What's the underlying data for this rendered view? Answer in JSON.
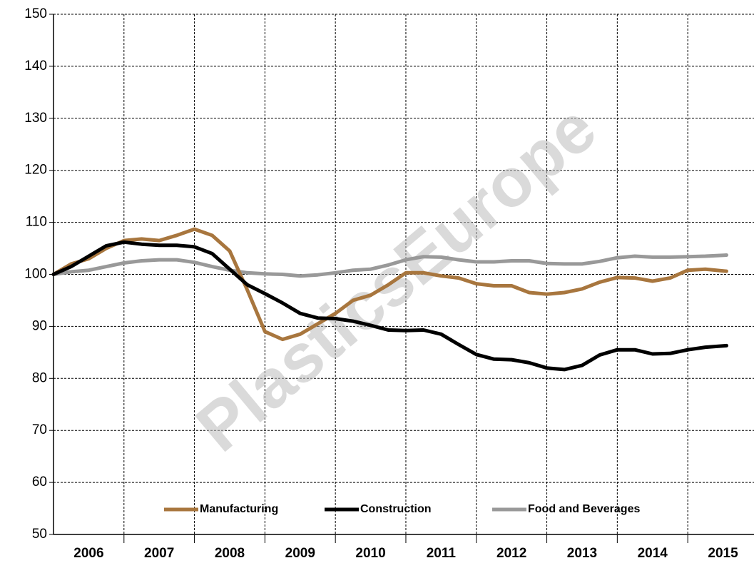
{
  "chart_data": {
    "type": "line",
    "watermark": "PlasticsEurope",
    "x": [
      2006.0,
      2006.25,
      2006.5,
      2006.75,
      2007.0,
      2007.25,
      2007.5,
      2007.75,
      2008.0,
      2008.25,
      2008.5,
      2008.75,
      2009.0,
      2009.25,
      2009.5,
      2009.75,
      2010.0,
      2010.25,
      2010.5,
      2010.75,
      2011.0,
      2011.25,
      2011.5,
      2011.75,
      2012.0,
      2012.25,
      2012.5,
      2012.75,
      2013.0,
      2013.25,
      2013.5,
      2013.75,
      2014.0,
      2014.25,
      2014.5,
      2014.75,
      2015.0,
      2015.25,
      2015.55
    ],
    "series": [
      {
        "name": "Manufacturing",
        "color": "#a8763e",
        "values": [
          100,
          102,
          103,
          105,
          106.5,
          106.8,
          106.5,
          107.5,
          108.7,
          107.5,
          104.5,
          97,
          89,
          87.5,
          88.5,
          90.5,
          92.5,
          95,
          96,
          98,
          100.3,
          100.3,
          99.7,
          99.3,
          98.2,
          97.8,
          97.8,
          96.5,
          96.2,
          96.5,
          97.2,
          98.5,
          99.4,
          99.3,
          98.7,
          99.3,
          100.8,
          101,
          100.6
        ]
      },
      {
        "name": "Construction",
        "color": "#000000",
        "values": [
          100,
          101.5,
          103.5,
          105.5,
          106.2,
          105.8,
          105.6,
          105.6,
          105.3,
          104,
          101,
          98,
          96.3,
          94.5,
          92.5,
          91.6,
          91.5,
          91,
          90.2,
          89.3,
          89.2,
          89.3,
          88.5,
          86.5,
          84.6,
          83.7,
          83.6,
          83,
          82.0,
          81.7,
          82.5,
          84.5,
          85.5,
          85.5,
          84.7,
          84.8,
          85.5,
          86.0,
          86.3
        ]
      },
      {
        "name": "Food and Beverages",
        "color": "#999999",
        "values": [
          100,
          100.5,
          100.8,
          101.5,
          102.2,
          102.6,
          102.8,
          102.8,
          102.3,
          101.5,
          100.8,
          100.3,
          100.1,
          100,
          99.7,
          99.9,
          100.3,
          100.8,
          101,
          101.8,
          102.8,
          103.4,
          103.3,
          102.8,
          102.4,
          102.4,
          102.6,
          102.6,
          102.1,
          102,
          102,
          102.5,
          103.2,
          103.5,
          103.3,
          103.3,
          103.4,
          103.5,
          103.7
        ]
      }
    ],
    "xlim": [
      2006,
      2015.94
    ],
    "xticks": [
      2006,
      2007,
      2008,
      2009,
      2010,
      2011,
      2012,
      2013,
      2014,
      2015
    ],
    "ylim": [
      50,
      150
    ],
    "yticks": [
      50,
      60,
      70,
      80,
      90,
      100,
      110,
      120,
      130,
      140,
      150
    ],
    "grid": true,
    "legend": "bottom"
  }
}
